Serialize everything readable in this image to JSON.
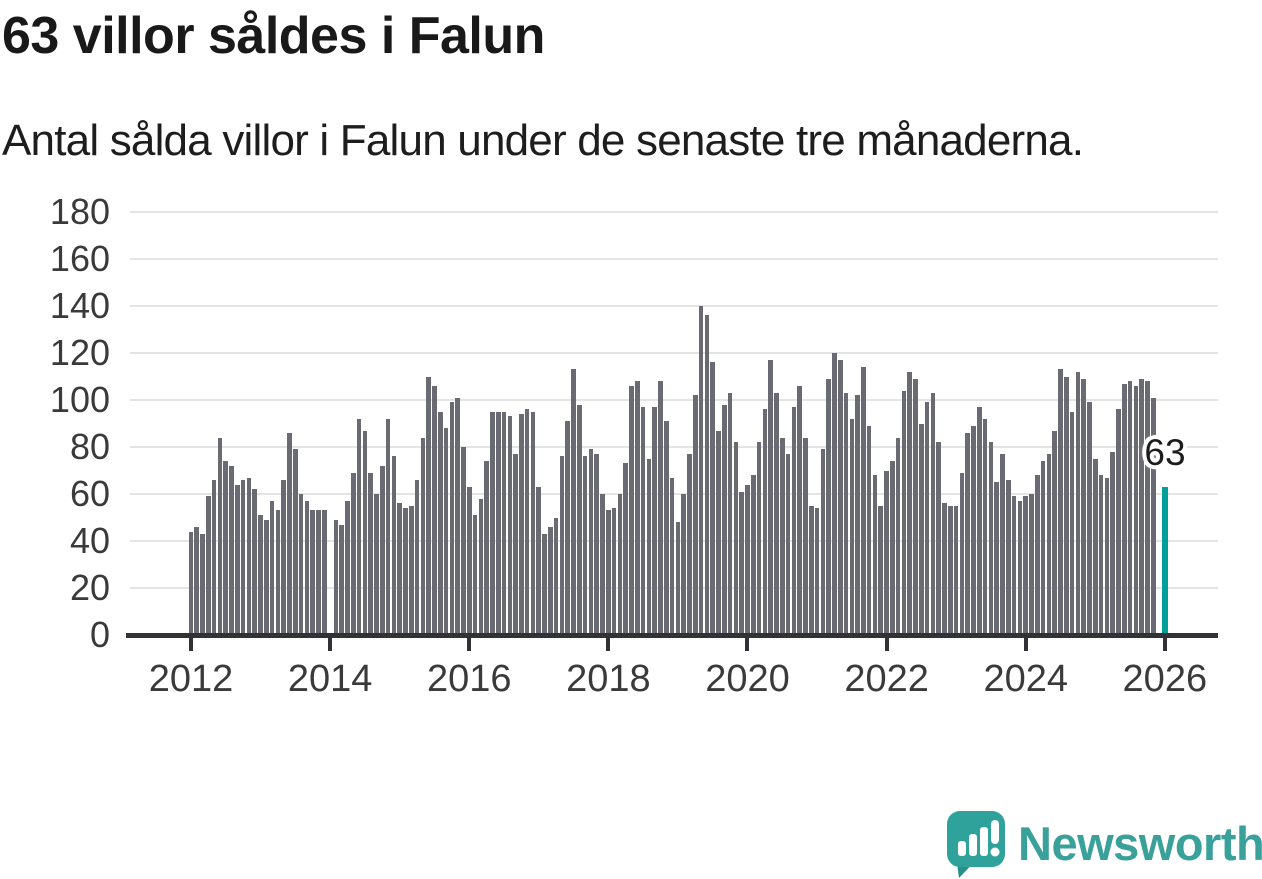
{
  "header": {
    "title": "63 villor såldes i Falun",
    "subtitle": "Antal sålda villor i Falun under de senaste tre månaderna."
  },
  "chart_data": {
    "type": "bar",
    "title": "63 villor såldes i Falun",
    "subtitle": "Antal sålda villor i Falun under de senaste tre månaderna.",
    "xlabel": "",
    "ylabel": "",
    "ylim": [
      0,
      180
    ],
    "yticks": [
      0,
      20,
      40,
      60,
      80,
      100,
      120,
      140,
      160,
      180
    ],
    "xticks": [
      2012,
      2014,
      2016,
      2018,
      2020,
      2022,
      2024,
      2026
    ],
    "grid": true,
    "start_month": "2012-01",
    "frequency": "monthly",
    "bar_color": "#6a6a72",
    "highlight_color": "#00a099",
    "values": [
      44,
      46,
      43,
      59,
      66,
      84,
      74,
      72,
      64,
      66,
      67,
      62,
      51,
      49,
      57,
      53,
      66,
      86,
      79,
      60,
      57,
      53,
      53,
      53,
      null,
      49,
      47,
      57,
      69,
      92,
      87,
      69,
      60,
      72,
      92,
      76,
      56,
      54,
      55,
      66,
      84,
      110,
      106,
      95,
      88,
      99,
      101,
      80,
      63,
      51,
      58,
      74,
      95,
      95,
      95,
      93,
      77,
      94,
      96,
      95,
      63,
      43,
      46,
      50,
      76,
      91,
      113,
      98,
      76,
      79,
      77,
      60,
      53,
      54,
      60,
      73,
      106,
      108,
      97,
      75,
      97,
      108,
      91,
      67,
      48,
      60,
      77,
      102,
      140,
      136,
      116,
      87,
      98,
      103,
      82,
      61,
      64,
      68,
      82,
      96,
      117,
      103,
      84,
      77,
      97,
      106,
      84,
      55,
      54,
      79,
      109,
      120,
      117,
      103,
      92,
      102,
      114,
      89,
      68,
      55,
      70,
      74,
      84,
      104,
      112,
      109,
      90,
      99,
      103,
      82,
      56,
      55,
      55,
      69,
      86,
      89,
      97,
      92,
      82,
      65,
      77,
      66,
      59,
      57,
      59,
      60,
      68,
      74,
      77,
      87,
      113,
      110,
      95,
      112,
      109,
      99,
      75,
      68,
      67,
      78,
      96,
      107,
      108,
      106,
      109,
      108,
      101,
      null,
      63
    ],
    "highlight": {
      "index": 168,
      "value": 63,
      "label": "63"
    }
  },
  "footer": {
    "brand": "Newsworthy",
    "brand_color": "#3aa19a",
    "icon_color": "#2fa29b",
    "icon_tail_color": "#27908a"
  }
}
